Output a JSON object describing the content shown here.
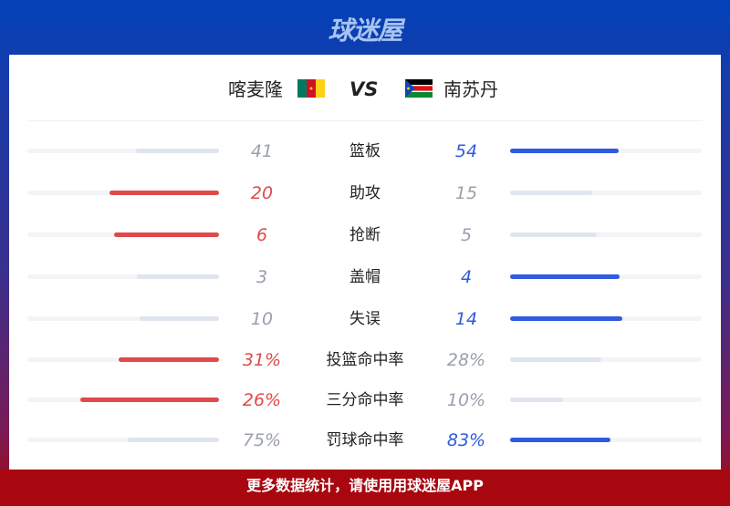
{
  "header": {
    "logo_text": "球迷屋"
  },
  "teams": {
    "home": {
      "name": "喀麦隆",
      "flag": "cameroon-flag"
    },
    "vs": "VS",
    "away": {
      "name": "南苏丹",
      "flag": "south-sudan-flag"
    }
  },
  "colors": {
    "home_win": "#e04a4a",
    "away_win": "#2f5be0",
    "lose": "#dfe5ee",
    "win_text_home": "#e04a4a",
    "win_text_away": "#2f5be0",
    "lose_text": "#9aa0ab"
  },
  "stats": [
    {
      "label": "篮板",
      "home": "41",
      "away": "54"
    },
    {
      "label": "助攻",
      "home": "20",
      "away": "15"
    },
    {
      "label": "抢断",
      "home": "6",
      "away": "5"
    },
    {
      "label": "盖帽",
      "home": "3",
      "away": "4"
    },
    {
      "label": "失误",
      "home": "10",
      "away": "14"
    },
    {
      "label": "投篮命中率",
      "home": "31%",
      "away": "28%"
    },
    {
      "label": "三分命中率",
      "home": "26%",
      "away": "10%"
    },
    {
      "label": "罚球命中率",
      "home": "75%",
      "away": "83%"
    }
  ],
  "footer": {
    "text": "更多数据统计，请使用用球迷屋APP"
  }
}
